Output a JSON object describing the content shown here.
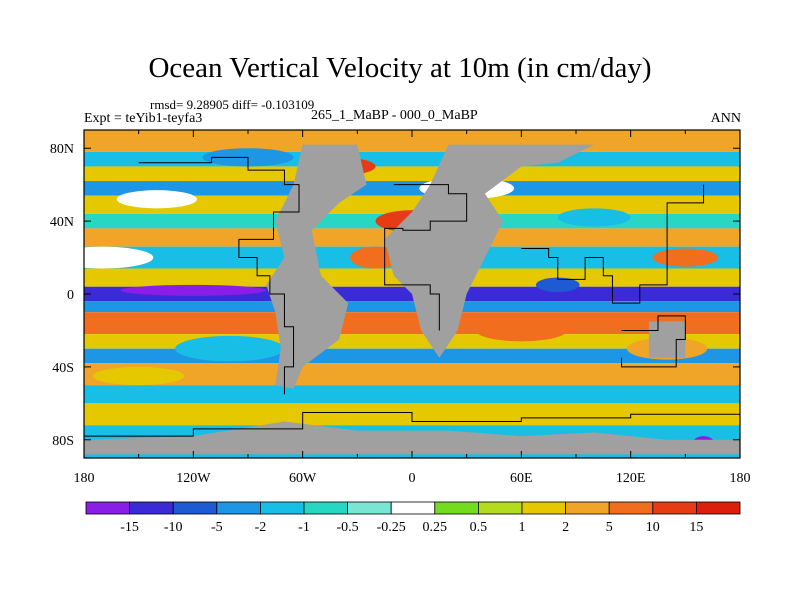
{
  "title": "Ocean Vertical Velocity at 10m (in cm/day)",
  "stats": "rmsd= 9.28905 diff= -0.103109",
  "left_label": "Expt = teYib1-teyfa3",
  "center_label": "265_1_MaBP - 000_0_MaBP",
  "right_label": "ANN",
  "chart_data": {
    "type": "heatmap",
    "title": "Ocean Vertical Velocity at 10m (in cm/day)",
    "units": "cm/day",
    "xlim": [
      -180,
      180
    ],
    "ylim": [
      -90,
      90
    ],
    "x_ticks": [
      {
        "value": -180,
        "label": "180"
      },
      {
        "value": -120,
        "label": "120W"
      },
      {
        "value": -60,
        "label": "60W"
      },
      {
        "value": 0,
        "label": "0"
      },
      {
        "value": 60,
        "label": "60E"
      },
      {
        "value": 120,
        "label": "120E"
      },
      {
        "value": 180,
        "label": "180"
      }
    ],
    "y_ticks": [
      {
        "value": 80,
        "label": "80N"
      },
      {
        "value": 40,
        "label": "40N"
      },
      {
        "value": 0,
        "label": "0"
      },
      {
        "value": -40,
        "label": "40S"
      },
      {
        "value": -80,
        "label": "80S"
      }
    ],
    "colorbar": {
      "labels": [
        "-15",
        "-10",
        "-5",
        "-2",
        "-1",
        "-0.5",
        "-0.25",
        "0.25",
        "0.5",
        "1",
        "2",
        "5",
        "10",
        "15"
      ],
      "colors": [
        "#8a1ee6",
        "#3a2bd6",
        "#1e5ad2",
        "#1e96e6",
        "#18bee6",
        "#28d7c3",
        "#78e6d2",
        "#ffffff",
        "#73dc1e",
        "#b4dc1e",
        "#e6c800",
        "#f0a528",
        "#f06e1e",
        "#e63c14",
        "#dc1e0a"
      ]
    },
    "land_color": "#a0a0a0"
  }
}
